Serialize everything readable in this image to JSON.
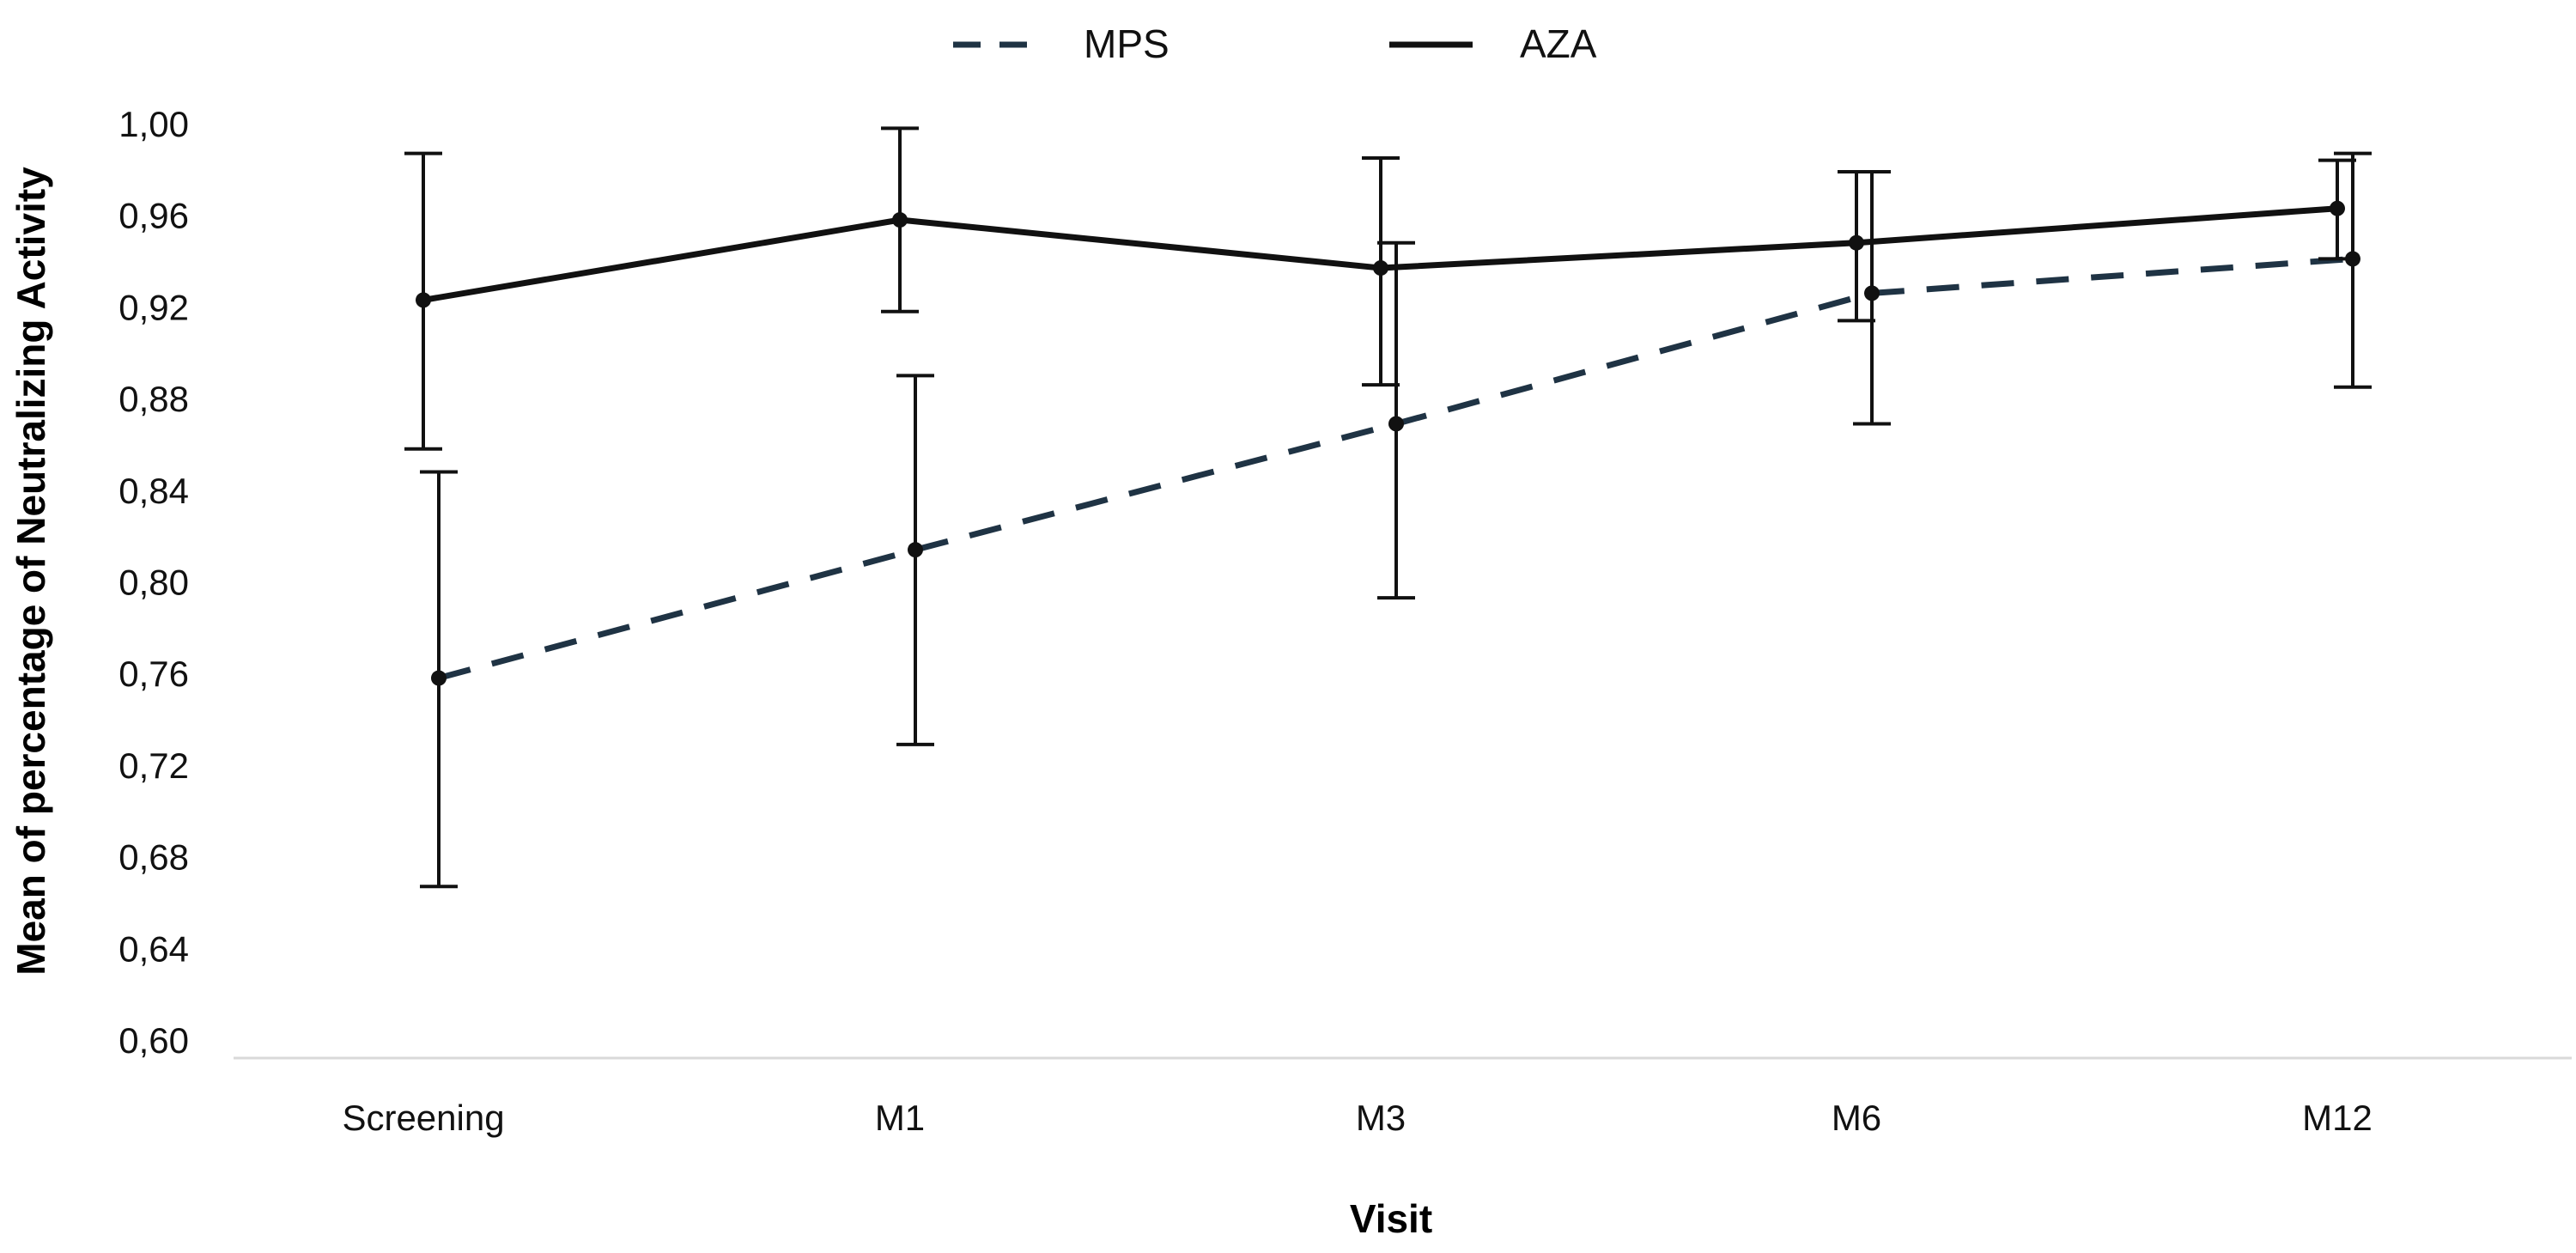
{
  "chart_data": {
    "type": "line",
    "title": "",
    "xlabel": "Visit",
    "ylabel": "Mean of percentage of Neutralizing Activity",
    "categories": [
      "Screening",
      "M1",
      "M3",
      "M6",
      "M12"
    ],
    "ylim": [
      0.6,
      1.0
    ],
    "yticks": [
      "0,60",
      "0,64",
      "0,68",
      "0,72",
      "0,76",
      "0,80",
      "0,84",
      "0,88",
      "0,92",
      "0,96",
      "1,00"
    ],
    "grid": false,
    "legend_position": "top-center",
    "series": [
      {
        "name": "MPS",
        "style": "dashed",
        "color": "#1f3344",
        "values": [
          0.758,
          0.814,
          0.869,
          0.926,
          0.941
        ],
        "error_low": [
          0.667,
          0.729,
          0.793,
          0.869,
          0.885
        ],
        "error_high": [
          0.848,
          0.89,
          0.948,
          0.979,
          0.987
        ]
      },
      {
        "name": "AZA",
        "style": "solid",
        "color": "#111111",
        "values": [
          0.923,
          0.958,
          0.937,
          0.948,
          0.963
        ],
        "error_low": [
          0.858,
          0.918,
          0.886,
          0.914,
          0.941
        ],
        "error_high": [
          0.987,
          0.998,
          0.985,
          0.979,
          0.984
        ]
      }
    ]
  }
}
